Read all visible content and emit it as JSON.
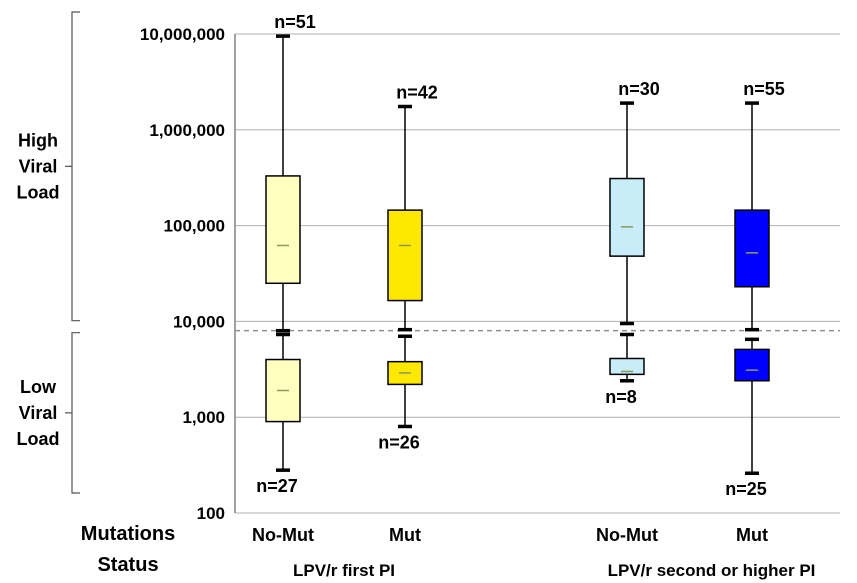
{
  "chart_data": {
    "type": "boxplot",
    "y_scale": "log",
    "ylim": [
      100,
      10000000
    ],
    "y_ticks": [
      "100",
      "1,000",
      "10,000",
      "100,000",
      "1,000,000",
      "10,000,000"
    ],
    "y_tick_values": [
      100,
      1000,
      10000,
      100000,
      1000000,
      10000000
    ],
    "grid": true,
    "threshold_line": 8000,
    "x_label": [
      "Mutations",
      "Status"
    ],
    "categories": [
      "No-Mut",
      "Mut",
      "No-Mut",
      "Mut"
    ],
    "groups": [
      "LPV/r first PI",
      "LPV/r second or higher PI"
    ],
    "regions": [
      {
        "label": [
          "High",
          "Viral",
          "Load"
        ],
        "range": [
          8000,
          10000000
        ]
      },
      {
        "label": [
          "Low",
          "Viral",
          "Load"
        ],
        "range": [
          100,
          8000
        ]
      }
    ],
    "boxes": [
      {
        "category": 0,
        "region": "high",
        "color": "#ffffc0",
        "min": 8000,
        "q1": 25000,
        "median": 62000,
        "q3": 330000,
        "max": 9500000,
        "n_label": "n=51",
        "n_pos": "top"
      },
      {
        "category": 1,
        "region": "high",
        "color": "#ffe800",
        "min": 8200,
        "q1": 16500,
        "median": 62000,
        "q3": 145000,
        "max": 1750000,
        "n_label": "n=42",
        "n_pos": "top"
      },
      {
        "category": 2,
        "region": "high",
        "color": "#c8ecf8",
        "min": 9500,
        "q1": 48000,
        "median": 97000,
        "q3": 310000,
        "max": 1900000,
        "n_label": "n=30",
        "n_pos": "top"
      },
      {
        "category": 3,
        "region": "high",
        "color": "#0000ff",
        "min": 8200,
        "q1": 23000,
        "median": 52000,
        "q3": 145000,
        "max": 1900000,
        "n_label": "n=55",
        "n_pos": "top"
      },
      {
        "category": 0,
        "region": "low",
        "color": "#ffffc0",
        "min": 280,
        "q1": 900,
        "median": 1900,
        "q3": 4000,
        "max": 7300,
        "n_label": "n=27",
        "n_pos": "bottom"
      },
      {
        "category": 1,
        "region": "low",
        "color": "#ffe800",
        "min": 800,
        "q1": 2200,
        "median": 2900,
        "q3": 3800,
        "max": 7000,
        "n_label": "n=26",
        "n_pos": "bottom"
      },
      {
        "category": 2,
        "region": "low",
        "color": "#c8ecf8",
        "min": 2400,
        "q1": 2800,
        "median": 3000,
        "q3": 4100,
        "max": 7300,
        "n_label": "n=8",
        "n_pos": "bottom"
      },
      {
        "category": 3,
        "region": "low",
        "color": "#0000ff",
        "min": 260,
        "q1": 2400,
        "median": 3100,
        "q3": 5100,
        "max": 6500,
        "n_label": "n=25",
        "n_pos": "bottom"
      }
    ]
  }
}
